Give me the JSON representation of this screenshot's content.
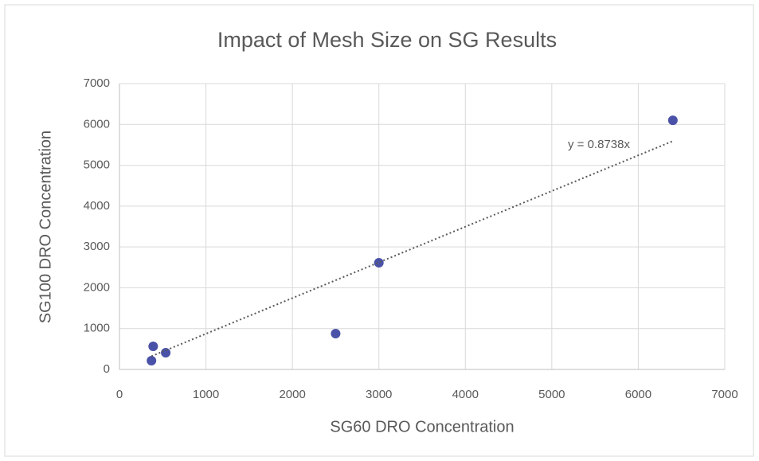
{
  "chart_data": {
    "type": "scatter",
    "title": "Impact of Mesh Size on SG Results",
    "xlabel": "SG60 DRO Concentration",
    "ylabel": "SG100 DRO Concentration",
    "x": [
      390,
      370,
      535,
      2500,
      3000,
      6400
    ],
    "values": [
      565,
      215,
      410,
      877,
      2612,
      6100
    ],
    "color": "#4a52a8",
    "xlim": [
      0,
      7000
    ],
    "xticks": [
      0,
      1000,
      2000,
      3000,
      4000,
      5000,
      6000,
      7000
    ],
    "ylim": [
      0,
      7000
    ],
    "yticks": [
      0,
      1000,
      2000,
      3000,
      4000,
      5000,
      6000,
      7000
    ],
    "grid": true,
    "trendline": {
      "label": "y = 0.8738x",
      "slope": 0.8738,
      "color": "#595959"
    }
  }
}
